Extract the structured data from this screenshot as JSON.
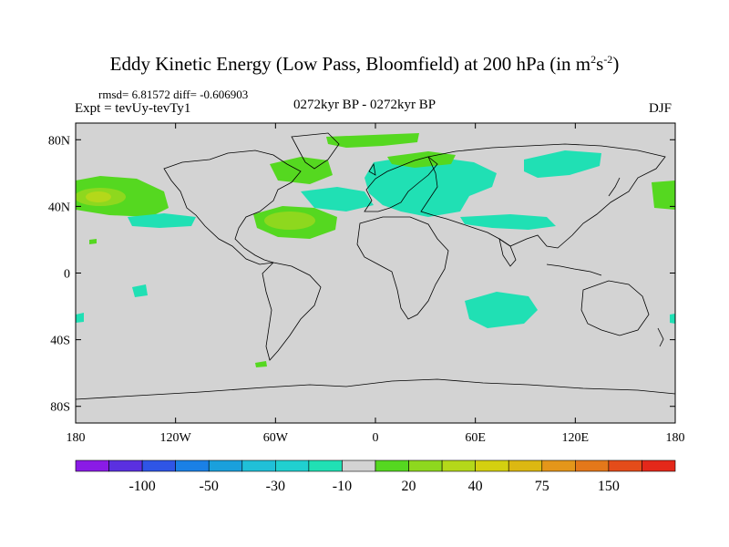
{
  "header": {
    "title_main": "Eddy Kinetic Energy (Low Pass, Bloomfield) at 200 hPa (in m",
    "title_sup1": "2",
    "title_mid": "s",
    "title_sup2": "-2",
    "title_end": ")",
    "stats": "rmsd= 6.81572 diff= -0.606903",
    "experiment": "Expt = tevUy-tevTy1",
    "period": "0272kyr BP - 0272kyr BP",
    "season": "DJF"
  },
  "map_data": {
    "projection": "cylindrical-equidistant",
    "lon_range": [
      -180,
      180
    ],
    "lat_range": [
      -90,
      90
    ],
    "lat_tick_labels": [
      "80N",
      "40N",
      "0",
      "40S",
      "80S"
    ],
    "lon_tick_labels": [
      "180",
      "120W",
      "60W",
      "0",
      "60E",
      "120E",
      "180"
    ],
    "background_color": "#d3d3d3"
  },
  "colorbar": {
    "colors": [
      "#8a1be6",
      "#5a30e0",
      "#2f55e6",
      "#1a80e6",
      "#1aa0dc",
      "#20c0d8",
      "#20d0d0",
      "#20e0b4",
      "#d3d3d3",
      "#55d820",
      "#8ed81e",
      "#b4d81a",
      "#d4d010",
      "#dcb812",
      "#e4961a",
      "#e4781a",
      "#e44c1a",
      "#e4281a"
    ],
    "labels": [
      "-100",
      "-50",
      "-30",
      "-10",
      "20",
      "40",
      "75",
      "150"
    ]
  }
}
